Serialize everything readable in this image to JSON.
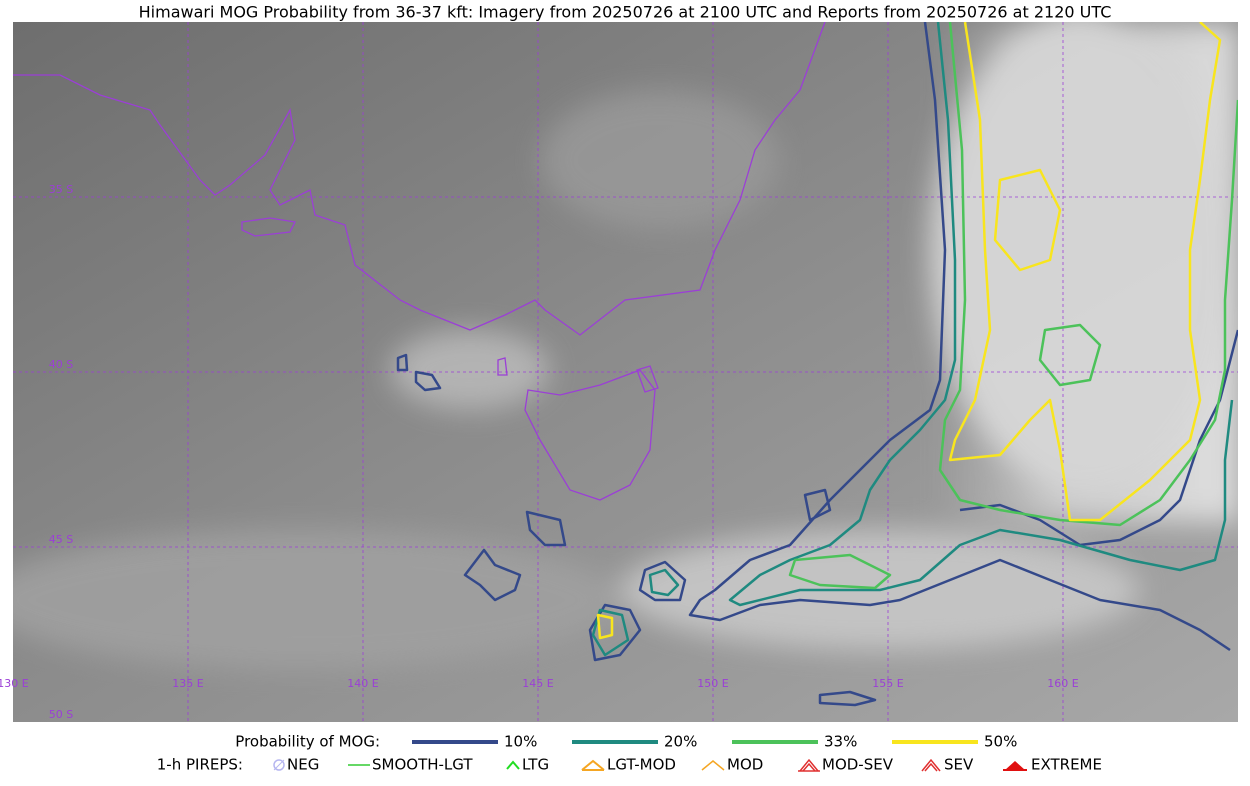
{
  "title": "Himawari MOG Probability from 36-37 kft: Imagery from 20250726 at 2100 UTC and Reports from 20250726 at 2120 UTC",
  "grid": {
    "lon_labels": [
      "130 E",
      "135 E",
      "140 E",
      "145 E",
      "150 E",
      "155 E",
      "160 E"
    ],
    "lat_labels": [
      "35 S",
      "40 S",
      "45 S",
      "50 S"
    ]
  },
  "legend": {
    "probability": {
      "title": "Probability of MOG:",
      "levels": [
        {
          "label": "10%",
          "color": "#34498a"
        },
        {
          "label": "20%",
          "color": "#1f8a80"
        },
        {
          "label": "33%",
          "color": "#4cc25a"
        },
        {
          "label": "50%",
          "color": "#f8e51e"
        }
      ]
    },
    "pireps": {
      "title": "1-h PIREPS:",
      "items": [
        {
          "label": "NEG",
          "color": "#b6b6f0"
        },
        {
          "label": "SMOOTH-LGT",
          "color": "#33cc33"
        },
        {
          "label": "LTG",
          "color": "#22dd22"
        },
        {
          "label": "LGT-MOD",
          "color": "#f5a623"
        },
        {
          "label": "MOD",
          "color": "#f5a623"
        },
        {
          "label": "MOD-SEV",
          "color": "#e03030"
        },
        {
          "label": "SEV",
          "color": "#e03030"
        },
        {
          "label": "EXTREME",
          "color": "#e01010"
        }
      ]
    }
  }
}
